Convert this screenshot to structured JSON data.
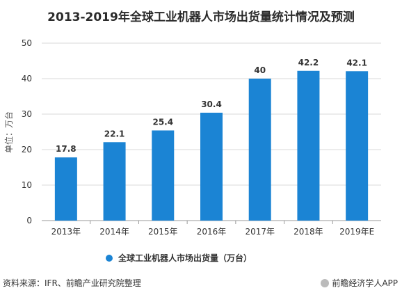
{
  "title": "2013-2019年全球工业机器人市场出货量统计情况及预测",
  "chart_data": {
    "type": "bar",
    "categories": [
      "2013年",
      "2014年",
      "2015年",
      "2016年",
      "2017年",
      "2018年",
      "2019年E"
    ],
    "series": [
      {
        "name": "全球工业机器人市场出货量（万台）",
        "values": [
          17.8,
          22.1,
          25.4,
          30.4,
          40,
          42.2,
          42.1
        ],
        "color": "#1b84d4"
      }
    ],
    "data_labels": [
      "17.8",
      "22.1",
      "25.4",
      "30.4",
      "40",
      "42.2",
      "42.1"
    ],
    "ylabel": "单位：万台",
    "xlabel": "",
    "ylim": [
      0,
      50
    ],
    "yticks": [
      0,
      10,
      20,
      30,
      40,
      50
    ],
    "grid": true,
    "legend_placement": "bottom"
  },
  "legend": {
    "label": "全球工业机器人市场出货量（万台）",
    "color": "#1b84d4"
  },
  "footer": {
    "source": "资料来源：IFR、前瞻产业研究院整理",
    "app": "前瞻经济学人APP"
  }
}
